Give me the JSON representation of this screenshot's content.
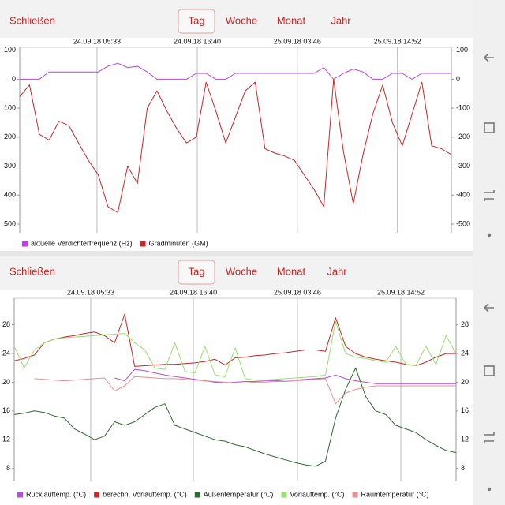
{
  "toolbar": {
    "close": "Schließen",
    "tabs": [
      "Tag",
      "Woche",
      "Monat",
      "Jahr"
    ]
  },
  "chart_data": [
    {
      "type": "line",
      "x": [
        0,
        1,
        2,
        3,
        4,
        5,
        6,
        7,
        8,
        9,
        10,
        11,
        12,
        13,
        14,
        15,
        16,
        17,
        18,
        19,
        20,
        21,
        22,
        23,
        24,
        25,
        26,
        27,
        28,
        29,
        30,
        31,
        32,
        33,
        34,
        35,
        36,
        37,
        38,
        39,
        40,
        41,
        42,
        43,
        44
      ],
      "xlim": [
        0,
        44
      ],
      "xticks": [
        {
          "value": 7.88,
          "label": "24.09.18 05:33"
        },
        {
          "value": 18.1,
          "label": "24.09.18 16:40"
        },
        {
          "value": 28.3,
          "label": "25.09.18 03:46"
        },
        {
          "value": 38.5,
          "label": "25.09.18 14:52"
        }
      ],
      "ylim": [
        -530,
        110
      ],
      "yticks": [
        100,
        0,
        {
          "value": -100,
          "label": "100"
        },
        {
          "value": -200,
          "label": "200"
        },
        {
          "value": -300,
          "label": "300"
        },
        {
          "value": -400,
          "label": "400"
        },
        {
          "value": -500,
          "label": "500"
        }
      ],
      "y2lim": [
        -530,
        110
      ],
      "y2ticks": [
        100,
        0,
        -100,
        -200,
        -300,
        -400,
        -500
      ],
      "grid": "x",
      "series": [
        {
          "name": "aktuelle Verdichterfrequenz (Hz)",
          "color": "#c040e0",
          "values": [
            0,
            0,
            0,
            25,
            25,
            25,
            25,
            25,
            25,
            45,
            55,
            40,
            45,
            25,
            0,
            0,
            0,
            0,
            20,
            20,
            0,
            0,
            20,
            20,
            20,
            20,
            20,
            20,
            20,
            20,
            20,
            40,
            0,
            20,
            35,
            25,
            0,
            0,
            20,
            20,
            0,
            20,
            20,
            20,
            20
          ]
        },
        {
          "name": "Gradminuten (GM)",
          "color": "#c62828",
          "values": [
            -60,
            -20,
            -190,
            -210,
            -145,
            -160,
            -220,
            -280,
            -330,
            -440,
            -460,
            -300,
            -360,
            -100,
            -40,
            -110,
            -170,
            -220,
            -200,
            -10,
            -110,
            -220,
            -130,
            -40,
            -10,
            -240,
            -255,
            -265,
            -280,
            -330,
            -380,
            -440,
            0,
            -250,
            -430,
            -260,
            -120,
            -20,
            -150,
            -230,
            -120,
            -10,
            -230,
            -240,
            -260
          ]
        }
      ]
    },
    {
      "type": "line",
      "x": [
        0,
        1,
        2,
        3,
        4,
        5,
        6,
        7,
        8,
        9,
        10,
        11,
        12,
        13,
        14,
        15,
        16,
        17,
        18,
        19,
        20,
        21,
        22,
        23,
        24,
        25,
        26,
        27,
        28,
        29,
        30,
        31,
        32,
        33,
        34,
        35,
        36,
        37,
        38,
        39,
        40,
        41,
        42,
        43,
        44
      ],
      "xlim": [
        0,
        44
      ],
      "xticks": [
        {
          "value": 7.62,
          "label": "24.09.18 05:33"
        },
        {
          "value": 17.84,
          "label": "24.09.18 16:40"
        },
        {
          "value": 28.2,
          "label": "25.09.18 03:46"
        },
        {
          "value": 38.5,
          "label": "25.09.18 14:52"
        }
      ],
      "ylim": [
        6.2,
        31.7
      ],
      "yticks": [
        28,
        24,
        20,
        16,
        12,
        8
      ],
      "y2lim": [
        6.2,
        31.7
      ],
      "y2ticks": [
        28,
        24,
        20,
        16,
        12,
        8
      ],
      "grid": "x",
      "series": [
        {
          "name": "Rücklauftemp. (°C)",
          "color": "#b050d8",
          "values": [
            null,
            null,
            null,
            null,
            null,
            null,
            null,
            null,
            null,
            null,
            20.6,
            20.2,
            21.8,
            21.6,
            21.3,
            21,
            20.8,
            20.6,
            20.4,
            20.2,
            20,
            19.9,
            20,
            20.1,
            20.1,
            20.2,
            20.2,
            20.3,
            20.3,
            20.4,
            20.5,
            20.6,
            21,
            20.5,
            20.2,
            20,
            19.8,
            19.8,
            19.8,
            19.8,
            19.8,
            19.8,
            19.8,
            19.8,
            19.8
          ]
        },
        {
          "name": "berechn. Vorlauftemp. (°C)",
          "color": "#c62828",
          "values": [
            23,
            23.3,
            23.8,
            25.5,
            26,
            26.3,
            26.5,
            26.8,
            27,
            26.5,
            25.5,
            29.5,
            22.2,
            22.3,
            22.4,
            22.5,
            22.5,
            22.6,
            22.7,
            22.9,
            23.2,
            22.4,
            23.4,
            23.5,
            23.7,
            23.8,
            24,
            24.1,
            24.3,
            24.5,
            24.5,
            24.3,
            29,
            25,
            24,
            23.5,
            23.2,
            23,
            22.8,
            22.5,
            22.3,
            22.8,
            23.5,
            24,
            24
          ]
        },
        {
          "name": "Außentemperatur (°C)",
          "color": "#2e6b2e",
          "values": [
            15.5,
            15.7,
            16,
            15.8,
            15.3,
            15,
            13.5,
            12.8,
            12,
            12.5,
            14.5,
            14,
            14.5,
            15.5,
            16.5,
            17,
            14,
            13.5,
            13,
            12.5,
            12,
            11.8,
            11.3,
            11,
            10.5,
            10,
            9.6,
            9.2,
            8.8,
            8.5,
            8.3,
            9,
            15,
            19,
            22,
            18,
            16,
            15.5,
            14,
            13.5,
            13,
            12,
            11.2,
            10.5,
            10.2
          ]
        },
        {
          "name": "Vorlauftemp. (°C)",
          "color": "#98e070",
          "values": [
            25,
            22,
            24.5,
            25.5,
            26,
            26.2,
            26.3,
            26.4,
            26.5,
            26.6,
            26.7,
            26.8,
            25.5,
            24.5,
            22,
            21.8,
            25.5,
            21.5,
            21.3,
            25,
            21,
            20.8,
            24.8,
            20.5,
            20.3,
            20.3,
            20.4,
            20.5,
            20.6,
            20.7,
            20.8,
            21,
            28.5,
            24,
            23.5,
            23.3,
            23,
            22.8,
            25,
            22.5,
            22.3,
            25,
            22.5,
            26.5,
            24
          ]
        },
        {
          "name": "Raumtemperatur (°C)",
          "color": "#e89090",
          "values": [
            null,
            null,
            20.5,
            20.4,
            20.3,
            20.2,
            20.3,
            20.4,
            20.5,
            20.6,
            18.8,
            19.5,
            20.8,
            20.7,
            20.6,
            20.5,
            20.5,
            20.4,
            20.3,
            20.2,
            20.1,
            20,
            19.9,
            19.9,
            20,
            20,
            20.1,
            20.1,
            20.2,
            20.3,
            20.4,
            20.5,
            17,
            18.5,
            19,
            19.3,
            19.5,
            19.5,
            19.5,
            19.5,
            19.5,
            19.5,
            19.5,
            19.5,
            19.5
          ]
        }
      ]
    }
  ]
}
